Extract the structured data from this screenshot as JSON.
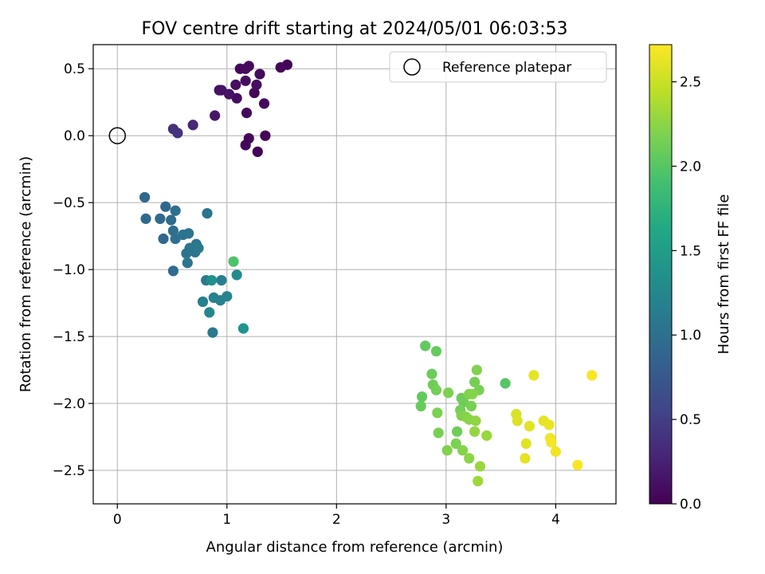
{
  "chart_data": {
    "type": "scatter",
    "title": "FOV centre drift starting at 2024/05/01 06:03:53",
    "xlabel": "Angular distance from reference (arcmin)",
    "ylabel": "Rotation from reference (arcmin)",
    "xlim": [
      -0.22,
      4.55
    ],
    "ylim": [
      -2.75,
      0.68
    ],
    "xticks": [
      0,
      1,
      2,
      3,
      4
    ],
    "yticks": [
      0.5,
      0.0,
      -0.5,
      -1.0,
      -1.5,
      -2.0,
      -2.5
    ],
    "xtick_labels": [
      "0",
      "1",
      "2",
      "3",
      "4"
    ],
    "ytick_labels": [
      "0.5",
      "0.0",
      "−0.5",
      "−1.0",
      "−1.5",
      "−2.0",
      "−2.5"
    ],
    "grid": true,
    "legend": {
      "placement": "top-right",
      "entries": [
        {
          "label": "Reference platepar",
          "marker": "open-circle",
          "x": 0,
          "y": 0
        }
      ]
    },
    "colorbar": {
      "label": "Hours from first FF file",
      "colormap": "viridis",
      "range": [
        0.0,
        2.72
      ],
      "ticks": [
        0.0,
        0.5,
        1.0,
        1.5,
        2.0,
        2.5
      ],
      "tick_labels": [
        "0.0",
        "0.5",
        "1.0",
        "1.5",
        "2.0",
        "2.5"
      ]
    },
    "points": [
      {
        "x": 1.55,
        "y": 0.53,
        "h": 0.02
      },
      {
        "x": 1.49,
        "y": 0.51,
        "h": 0.04
      },
      {
        "x": 1.12,
        "y": 0.5,
        "h": 0.05
      },
      {
        "x": 1.2,
        "y": 0.52,
        "h": 0.06
      },
      {
        "x": 1.17,
        "y": 0.5,
        "h": 0.07
      },
      {
        "x": 1.3,
        "y": 0.46,
        "h": 0.08
      },
      {
        "x": 1.17,
        "y": 0.41,
        "h": 0.09
      },
      {
        "x": 1.27,
        "y": 0.38,
        "h": 0.1
      },
      {
        "x": 1.08,
        "y": 0.38,
        "h": 0.11
      },
      {
        "x": 0.93,
        "y": 0.34,
        "h": 0.12
      },
      {
        "x": 0.95,
        "y": 0.34,
        "h": 0.13
      },
      {
        "x": 1.02,
        "y": 0.31,
        "h": 0.14
      },
      {
        "x": 1.25,
        "y": 0.32,
        "h": 0.05
      },
      {
        "x": 1.09,
        "y": 0.28,
        "h": 0.1
      },
      {
        "x": 1.34,
        "y": 0.24,
        "h": 0.06
      },
      {
        "x": 1.18,
        "y": 0.17,
        "h": 0.07
      },
      {
        "x": 0.89,
        "y": 0.15,
        "h": 0.18
      },
      {
        "x": 1.35,
        "y": 0.0,
        "h": 0.02
      },
      {
        "x": 1.2,
        "y": -0.02,
        "h": 0.05
      },
      {
        "x": 1.17,
        "y": -0.07,
        "h": 0.04
      },
      {
        "x": 1.28,
        "y": -0.12,
        "h": 0.03
      },
      {
        "x": 0.69,
        "y": 0.08,
        "h": 0.3
      },
      {
        "x": 0.51,
        "y": 0.05,
        "h": 0.38
      },
      {
        "x": 0.55,
        "y": 0.02,
        "h": 0.4
      },
      {
        "x": 0.25,
        "y": -0.46,
        "h": 0.9
      },
      {
        "x": 0.26,
        "y": -0.62,
        "h": 0.92
      },
      {
        "x": 0.44,
        "y": -0.53,
        "h": 0.9
      },
      {
        "x": 0.39,
        "y": -0.62,
        "h": 0.94
      },
      {
        "x": 0.49,
        "y": -0.63,
        "h": 0.96
      },
      {
        "x": 0.53,
        "y": -0.56,
        "h": 0.98
      },
      {
        "x": 0.82,
        "y": -0.58,
        "h": 1.05
      },
      {
        "x": 0.51,
        "y": -0.71,
        "h": 0.97
      },
      {
        "x": 0.42,
        "y": -0.77,
        "h": 0.92
      },
      {
        "x": 0.53,
        "y": -0.77,
        "h": 1.0
      },
      {
        "x": 0.6,
        "y": -0.74,
        "h": 1.02
      },
      {
        "x": 0.65,
        "y": -0.73,
        "h": 1.04
      },
      {
        "x": 0.66,
        "y": -0.84,
        "h": 1.06
      },
      {
        "x": 0.72,
        "y": -0.81,
        "h": 1.08
      },
      {
        "x": 0.74,
        "y": -0.84,
        "h": 1.1
      },
      {
        "x": 0.63,
        "y": -0.88,
        "h": 1.03
      },
      {
        "x": 0.71,
        "y": -0.87,
        "h": 1.07
      },
      {
        "x": 0.64,
        "y": -0.95,
        "h": 1.05
      },
      {
        "x": 0.51,
        "y": -1.01,
        "h": 0.96
      },
      {
        "x": 1.06,
        "y": -0.94,
        "h": 1.95
      },
      {
        "x": 0.81,
        "y": -1.08,
        "h": 1.12
      },
      {
        "x": 0.86,
        "y": -1.08,
        "h": 1.35
      },
      {
        "x": 0.95,
        "y": -1.08,
        "h": 1.15
      },
      {
        "x": 1.09,
        "y": -1.04,
        "h": 1.3
      },
      {
        "x": 0.88,
        "y": -1.21,
        "h": 1.17
      },
      {
        "x": 0.94,
        "y": -1.23,
        "h": 1.2
      },
      {
        "x": 1.0,
        "y": -1.2,
        "h": 1.22
      },
      {
        "x": 0.78,
        "y": -1.24,
        "h": 1.18
      },
      {
        "x": 0.84,
        "y": -1.32,
        "h": 1.25
      },
      {
        "x": 0.87,
        "y": -1.47,
        "h": 1.1
      },
      {
        "x": 1.15,
        "y": -1.44,
        "h": 1.4
      },
      {
        "x": 2.81,
        "y": -1.57,
        "h": 2.05
      },
      {
        "x": 2.91,
        "y": -1.61,
        "h": 2.08
      },
      {
        "x": 2.87,
        "y": -1.78,
        "h": 2.1
      },
      {
        "x": 3.28,
        "y": -1.75,
        "h": 2.2
      },
      {
        "x": 3.26,
        "y": -1.84,
        "h": 2.15
      },
      {
        "x": 3.54,
        "y": -1.85,
        "h": 2.0
      },
      {
        "x": 2.88,
        "y": -1.86,
        "h": 2.12
      },
      {
        "x": 2.91,
        "y": -1.9,
        "h": 2.14
      },
      {
        "x": 3.3,
        "y": -1.9,
        "h": 2.16
      },
      {
        "x": 3.02,
        "y": -1.92,
        "h": 2.18
      },
      {
        "x": 3.21,
        "y": -1.93,
        "h": 2.2
      },
      {
        "x": 3.24,
        "y": -1.93,
        "h": 2.22
      },
      {
        "x": 3.14,
        "y": -1.96,
        "h": 2.1
      },
      {
        "x": 3.16,
        "y": -1.99,
        "h": 2.12
      },
      {
        "x": 2.78,
        "y": -1.95,
        "h": 2.06
      },
      {
        "x": 2.77,
        "y": -2.02,
        "h": 2.08
      },
      {
        "x": 3.13,
        "y": -2.05,
        "h": 2.14
      },
      {
        "x": 3.23,
        "y": -2.02,
        "h": 2.16
      },
      {
        "x": 2.92,
        "y": -2.07,
        "h": 2.18
      },
      {
        "x": 3.14,
        "y": -2.09,
        "h": 2.2
      },
      {
        "x": 3.18,
        "y": -2.1,
        "h": 2.22
      },
      {
        "x": 3.21,
        "y": -2.12,
        "h": 2.24
      },
      {
        "x": 3.27,
        "y": -2.13,
        "h": 2.26
      },
      {
        "x": 3.1,
        "y": -2.21,
        "h": 2.12
      },
      {
        "x": 3.26,
        "y": -2.21,
        "h": 2.28
      },
      {
        "x": 3.37,
        "y": -2.24,
        "h": 2.3
      },
      {
        "x": 2.93,
        "y": -2.22,
        "h": 2.16
      },
      {
        "x": 3.09,
        "y": -2.3,
        "h": 2.18
      },
      {
        "x": 3.01,
        "y": -2.35,
        "h": 2.2
      },
      {
        "x": 3.15,
        "y": -2.35,
        "h": 2.22
      },
      {
        "x": 3.21,
        "y": -2.41,
        "h": 2.24
      },
      {
        "x": 3.31,
        "y": -2.47,
        "h": 2.3
      },
      {
        "x": 3.29,
        "y": -2.58,
        "h": 2.32
      },
      {
        "x": 3.8,
        "y": -1.79,
        "h": 2.62
      },
      {
        "x": 4.33,
        "y": -1.79,
        "h": 2.7
      },
      {
        "x": 3.64,
        "y": -2.08,
        "h": 2.56
      },
      {
        "x": 3.65,
        "y": -2.13,
        "h": 2.58
      },
      {
        "x": 3.76,
        "y": -2.17,
        "h": 2.6
      },
      {
        "x": 3.89,
        "y": -2.13,
        "h": 2.62
      },
      {
        "x": 3.94,
        "y": -2.16,
        "h": 2.64
      },
      {
        "x": 3.95,
        "y": -2.26,
        "h": 2.66
      },
      {
        "x": 3.96,
        "y": -2.29,
        "h": 2.68
      },
      {
        "x": 3.73,
        "y": -2.3,
        "h": 2.6
      },
      {
        "x": 3.72,
        "y": -2.41,
        "h": 2.62
      },
      {
        "x": 4.0,
        "y": -2.36,
        "h": 2.66
      },
      {
        "x": 4.2,
        "y": -2.46,
        "h": 2.7
      }
    ]
  }
}
